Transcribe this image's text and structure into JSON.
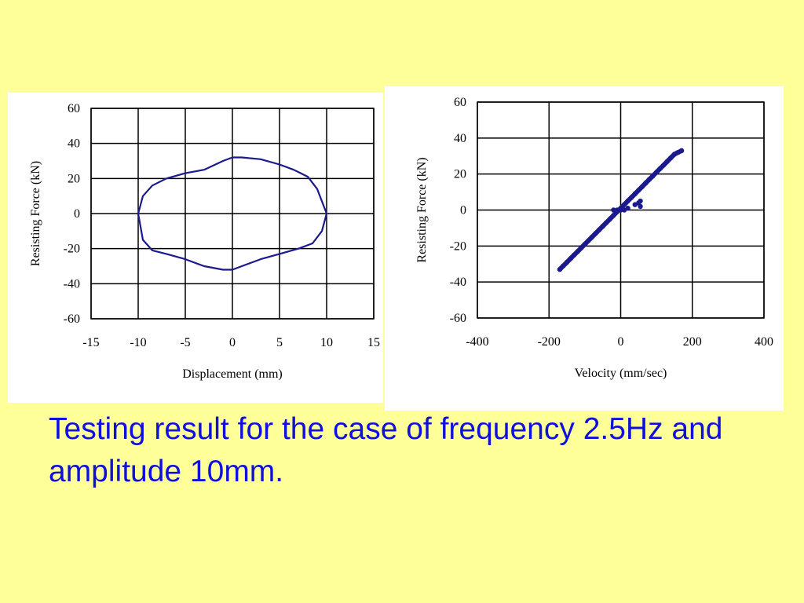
{
  "caption": "Testing result for the case of frequency 2.5Hz and amplitude 10mm.",
  "colors": {
    "background": "#ffff99",
    "series": "#1a1a8c",
    "caption": "#1010dd"
  },
  "chart_data": [
    {
      "type": "line",
      "xlabel": "Displacement (mm)",
      "ylabel": "Resisting Force (kN)",
      "xlim": [
        -15,
        15
      ],
      "ylim": [
        -60,
        60
      ],
      "xticks": [
        "-15",
        "-10",
        "-5",
        "0",
        "5",
        "10",
        "15"
      ],
      "yticks": [
        "60",
        "40",
        "20",
        "0",
        "-20",
        "-40",
        "-60"
      ],
      "grid": true,
      "series": [
        {
          "x": [
            -10,
            -9.5,
            -8.5,
            -7,
            -5,
            -3,
            -1,
            0,
            1,
            3,
            5,
            6.5,
            8,
            9,
            9.5,
            10,
            9.5,
            8.5,
            7,
            5,
            3,
            1,
            0,
            -1,
            -3,
            -5,
            -7,
            -8.5,
            -9.5,
            -10
          ],
          "y": [
            0,
            10,
            16,
            20,
            23,
            25,
            30,
            32,
            32,
            31,
            28,
            25,
            21,
            14,
            7,
            0,
            -10,
            -17,
            -20,
            -23,
            -26,
            -30,
            -32,
            -32,
            -30,
            -26,
            -23,
            -21,
            -15,
            0
          ]
        }
      ]
    },
    {
      "type": "scatter",
      "xlabel": "Velocity (mm/sec)",
      "ylabel": "Resisting Force (kN)",
      "xlim": [
        -400,
        400
      ],
      "ylim": [
        -60,
        60
      ],
      "xticks": [
        "-400",
        "-200",
        "0",
        "200",
        "400"
      ],
      "yticks": [
        "60",
        "40",
        "20",
        "0",
        "-20",
        "-40",
        "-60"
      ],
      "grid": true,
      "series": [
        {
          "x": [
            -170,
            -160,
            -150,
            -140,
            -130,
            -120,
            -110,
            -100,
            -90,
            -80,
            -70,
            -60,
            -50,
            -40,
            -30,
            -20,
            -10,
            0,
            10,
            20,
            30,
            40,
            50,
            60,
            70,
            80,
            90,
            100,
            110,
            120,
            130,
            140,
            150,
            160,
            170,
            -20,
            -10,
            0,
            10,
            20,
            40,
            50,
            55,
            55
          ],
          "y": [
            -33,
            -31,
            -29,
            -27,
            -25,
            -23,
            -21,
            -19,
            -17,
            -15,
            -13,
            -11,
            -9,
            -7,
            -5,
            -3,
            -1,
            1,
            3,
            5,
            7,
            9,
            11,
            13,
            15,
            17,
            19,
            21,
            23,
            25,
            27,
            29,
            31,
            32,
            33,
            0,
            0,
            0,
            0,
            1,
            3,
            4,
            5,
            2
          ]
        }
      ]
    }
  ]
}
